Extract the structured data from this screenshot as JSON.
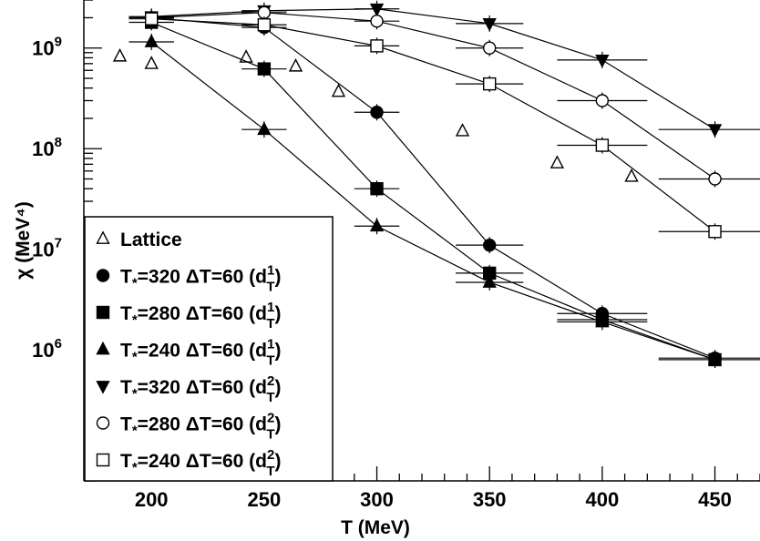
{
  "chart_data": {
    "type": "line",
    "xlabel": "T (MeV)",
    "ylabel": "χ (MeV⁴)",
    "xlim": [
      170,
      470
    ],
    "ylim": [
      50000,
      3000000000
    ],
    "yscale": "log",
    "x_ticks": [
      200,
      250,
      300,
      350,
      400,
      450
    ],
    "y_ticks": [
      {
        "value": 1000000,
        "base": "10",
        "exp": "6"
      },
      {
        "value": 10000000,
        "base": "10",
        "exp": "7"
      },
      {
        "value": 100000000,
        "base": "10",
        "exp": "8"
      },
      {
        "value": 1000000000,
        "base": "10",
        "exp": "9"
      }
    ],
    "legend_position": "bottom-left",
    "grid": false,
    "series": [
      {
        "name": "Lattice",
        "marker": "triangle-up-open",
        "connect": false,
        "points": [
          {
            "x": 186,
            "y": 830000000,
            "xerr": 0
          },
          {
            "x": 200,
            "y": 700000000,
            "xerr": 0
          },
          {
            "x": 242,
            "y": 810000000,
            "xerr": 0
          },
          {
            "x": 264,
            "y": 660000000,
            "xerr": 0
          },
          {
            "x": 283,
            "y": 370000000,
            "xerr": 0
          },
          {
            "x": 338,
            "y": 150000000,
            "xerr": 0
          },
          {
            "x": 380,
            "y": 72000000,
            "xerr": 0
          },
          {
            "x": 413,
            "y": 53000000,
            "xerr": 0
          }
        ]
      },
      {
        "name": "T*=320 ΔT=60 (d_T^1)",
        "legend_main": "T",
        "legend_sub": "*",
        "legend_rest": "=320 ΔT=60 (d",
        "legend_sup": "1",
        "legend_low": "T",
        "legend_end": ")",
        "marker": "circle-filled",
        "connect": true,
        "points": [
          {
            "x": 200,
            "y": 2000000000,
            "xerr": 10
          },
          {
            "x": 250,
            "y": 1600000000,
            "xerr": 10
          },
          {
            "x": 300,
            "y": 230000000,
            "xerr": 10
          },
          {
            "x": 350,
            "y": 11000000,
            "xerr": 15
          },
          {
            "x": 400,
            "y": 2300000,
            "xerr": 20
          },
          {
            "x": 450,
            "y": 830000,
            "xerr": 25
          }
        ]
      },
      {
        "name": "T*=280 ΔT=60 (d_T^1)",
        "legend_main": "T",
        "legend_sub": "*",
        "legend_rest": "=280 ΔT=60 (d",
        "legend_sup": "1",
        "legend_low": "T",
        "legend_end": ")",
        "marker": "square-filled",
        "connect": true,
        "points": [
          {
            "x": 200,
            "y": 1800000000,
            "xerr": 10
          },
          {
            "x": 250,
            "y": 620000000,
            "xerr": 10
          },
          {
            "x": 300,
            "y": 40000000,
            "xerr": 10
          },
          {
            "x": 350,
            "y": 5800000,
            "xerr": 15
          },
          {
            "x": 400,
            "y": 2000000,
            "xerr": 20
          },
          {
            "x": 450,
            "y": 800000,
            "xerr": 25
          }
        ]
      },
      {
        "name": "T*=240 ΔT=60 (d_T^1)",
        "legend_main": "T",
        "legend_sub": "*",
        "legend_rest": "=240 ΔT=60 (d",
        "legend_sup": "1",
        "legend_low": "T",
        "legend_end": ")",
        "marker": "triangle-up-filled",
        "connect": true,
        "points": [
          {
            "x": 200,
            "y": 1150000000,
            "xerr": 10
          },
          {
            "x": 250,
            "y": 155000000,
            "xerr": 10
          },
          {
            "x": 300,
            "y": 17000000,
            "xerr": 10
          },
          {
            "x": 350,
            "y": 4700000,
            "xerr": 15
          },
          {
            "x": 400,
            "y": 1900000,
            "xerr": 20
          },
          {
            "x": 450,
            "y": 800000,
            "xerr": 25
          }
        ]
      },
      {
        "name": "T*=320 ΔT=60 (d_T^2)",
        "legend_main": "T",
        "legend_sub": "*",
        "legend_rest": "=320 ΔT=60 (d",
        "legend_sup": "2",
        "legend_low": "T",
        "legend_end": ")",
        "marker": "triangle-down-filled",
        "connect": true,
        "points": [
          {
            "x": 200,
            "y": 2050000000,
            "xerr": 10
          },
          {
            "x": 250,
            "y": 2350000000,
            "xerr": 10
          },
          {
            "x": 300,
            "y": 2450000000,
            "xerr": 10
          },
          {
            "x": 350,
            "y": 1750000000,
            "xerr": 15
          },
          {
            "x": 400,
            "y": 760000000,
            "xerr": 20
          },
          {
            "x": 450,
            "y": 155000000,
            "xerr": 25
          }
        ]
      },
      {
        "name": "T*=280 ΔT=60 (d_T^2)",
        "legend_main": "T",
        "legend_sub": "*",
        "legend_rest": "=280 ΔT=60 (d",
        "legend_sup": "2",
        "legend_low": "T",
        "legend_end": ")",
        "marker": "circle-open",
        "connect": true,
        "points": [
          {
            "x": 200,
            "y": 2000000000,
            "xerr": 10
          },
          {
            "x": 250,
            "y": 2250000000,
            "xerr": 10
          },
          {
            "x": 300,
            "y": 1850000000,
            "xerr": 10
          },
          {
            "x": 350,
            "y": 1000000000,
            "xerr": 15
          },
          {
            "x": 400,
            "y": 300000000,
            "xerr": 20
          },
          {
            "x": 450,
            "y": 50000000,
            "xerr": 25
          }
        ]
      },
      {
        "name": "T*=240 ΔT=60 (d_T^2)",
        "legend_main": "T",
        "legend_sub": "*",
        "legend_rest": "=240 ΔT=60 (d",
        "legend_sup": "2",
        "legend_low": "T",
        "legend_end": ")",
        "marker": "square-open",
        "connect": true,
        "points": [
          {
            "x": 200,
            "y": 1950000000,
            "xerr": 10
          },
          {
            "x": 250,
            "y": 1700000000,
            "xerr": 10
          },
          {
            "x": 300,
            "y": 1050000000,
            "xerr": 10
          },
          {
            "x": 350,
            "y": 440000000,
            "xerr": 15
          },
          {
            "x": 400,
            "y": 108000000,
            "xerr": 20
          },
          {
            "x": 450,
            "y": 15000000,
            "xerr": 25
          }
        ]
      }
    ]
  }
}
